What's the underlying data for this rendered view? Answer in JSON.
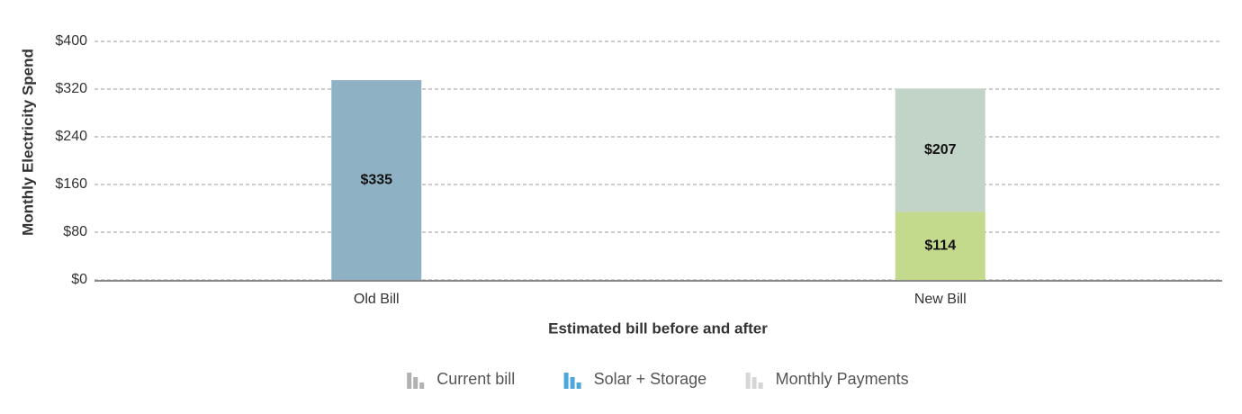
{
  "chart_data": {
    "type": "stacked_bar",
    "x_label": "Estimated bill before and after",
    "y_label": "Monthly Electricity Spend",
    "categories": [
      "Old Bill",
      "New Bill"
    ],
    "series": [
      {
        "name": "Current bill",
        "color": "#8fb1c4",
        "legend_color": "#b0b0b0",
        "values": [
          335,
          null
        ],
        "value_labels": [
          "$335",
          null
        ]
      },
      {
        "name": "Solar + Storage",
        "color": "#c3d98c",
        "legend_color": "#4ea7dc",
        "values": [
          null,
          114
        ],
        "value_labels": [
          null,
          "$114"
        ]
      },
      {
        "name": "Monthly Payments",
        "color": "#c2d4c8",
        "legend_color": "#d6d6d6",
        "values": [
          null,
          207
        ],
        "value_labels": [
          null,
          "$207"
        ]
      }
    ],
    "ylim": [
      0,
      400
    ],
    "yticks": [
      {
        "value": 0,
        "label": "$0"
      },
      {
        "value": 80,
        "label": "$80"
      },
      {
        "value": 160,
        "label": "$160"
      },
      {
        "value": 240,
        "label": "$240"
      },
      {
        "value": 320,
        "label": "$320"
      },
      {
        "value": 400,
        "label": "$400"
      }
    ],
    "grid": true
  }
}
